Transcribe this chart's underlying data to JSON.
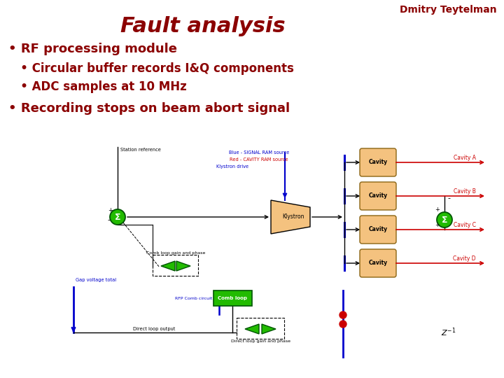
{
  "bg_color": "#ffffff",
  "title": "Fault analysis",
  "title_color": "#8B0000",
  "title_fontsize": 22,
  "author": "Dmitry Teytelman",
  "author_color": "#8B0000",
  "author_fontsize": 10,
  "bullet1": "• RF processing module",
  "bullet2": "   • Circular buffer records I&Q components",
  "bullet3": "   • ADC samples at 10 MHz",
  "bullet4": "• Recording stops on beam abort signal",
  "bullet_color": "#8B0000",
  "bullet1_fontsize": 13,
  "bullet2_fontsize": 12,
  "bullet3_fontsize": 12,
  "bullet4_fontsize": 13,
  "cavity_fill": "#F4C27F",
  "cavity_edge": "#8B6513",
  "green_fill": "#22BB00",
  "green_edge": "#005500",
  "klystron_fill": "#F4C27F",
  "blue_line": "#0000CC",
  "red_line": "#CC0000",
  "black_line": "#000000",
  "blue_text_color": "#0000CC",
  "red_text_color": "#CC0000",
  "black_text_color": "#000000"
}
